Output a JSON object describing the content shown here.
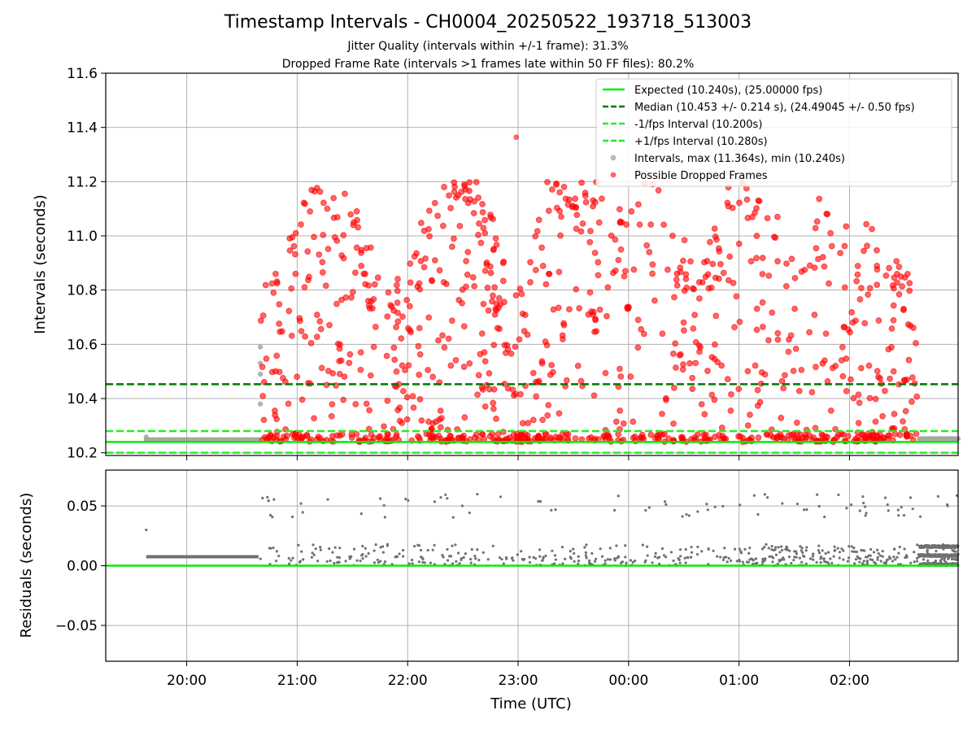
{
  "figure": {
    "title": "Timestamp Intervals - CH0004_20250522_193718_513003",
    "subtitle_1": "Jitter Quality (intervals within +/-1 frame): 31.3%",
    "subtitle_2": "Dropped Frame Rate (intervals >1 frames late within 50 FF files): 80.2%",
    "xlabel": "Time (UTC)"
  },
  "colors": {
    "expected": "#00ee00",
    "median": "#007700",
    "bounds": "#22ee22",
    "intervals": "#808080",
    "dropped": "#ff0000",
    "residuals": "#707070",
    "grid": "#b0b0b0"
  },
  "chart_data": [
    {
      "type": "scatter",
      "panel": "intervals",
      "ylabel": "Intervals (seconds)",
      "ylim": [
        10.19,
        11.6
      ],
      "yticks": [
        "10.2",
        "10.4",
        "10.6",
        "10.8",
        "11.0",
        "11.2",
        "11.4",
        "11.6"
      ],
      "ytick_values": [
        10.2,
        10.4,
        10.6,
        10.8,
        11.0,
        11.2,
        11.4,
        11.6
      ],
      "xlim": [
        "19:16",
        "02:59"
      ],
      "xticks": [
        "20:00",
        "21:00",
        "22:00",
        "23:00",
        "00:00",
        "01:00",
        "02:00"
      ],
      "grid": true,
      "legend_position": "top-right",
      "legend": [
        {
          "label": "Expected (10.240s), (25.00000 fps)",
          "kind": "solid-line",
          "color": "#00ee00"
        },
        {
          "label": "Median (10.453 +/- 0.214 s), (24.49045 +/- 0.50 fps)",
          "kind": "dashed-line",
          "color": "#007700"
        },
        {
          "label": "-1/fps Interval (10.200s)",
          "kind": "dashed-line",
          "color": "#22ee22"
        },
        {
          "label": "+1/fps Interval (10.280s)",
          "kind": "dashed-line",
          "color": "#22ee22"
        },
        {
          "label": "Intervals, max (11.364s), min (10.240s)",
          "kind": "marker",
          "color": "#a0a0a0"
        },
        {
          "label": "Possible Dropped Frames",
          "kind": "marker",
          "color": "#ff3030"
        }
      ],
      "reference_lines": {
        "expected": 10.24,
        "median": 10.453,
        "minus_one_frame": 10.2,
        "plus_one_frame": 10.28
      },
      "series": [
        {
          "name": "Intervals, max (11.364s), min (10.240s)",
          "segments": [
            {
              "start": "19:38",
              "end": "20:39",
              "value": 10.248
            },
            {
              "start": "02:38",
              "end": "02:59",
              "value": 10.252
            }
          ],
          "points": [
            {
              "time": "19:38",
              "value": 10.258
            },
            {
              "time": "20:40",
              "value": 10.59
            },
            {
              "time": "20:40",
              "value": 10.53
            },
            {
              "time": "20:40",
              "value": 10.49
            },
            {
              "time": "20:40",
              "value": 10.38
            }
          ]
        },
        {
          "name": "Possible Dropped Frames",
          "range": [
            "20:40",
            "02:37"
          ],
          "value_range": [
            10.24,
            11.364
          ],
          "max_point": {
            "time": "22:59",
            "value": 11.364
          }
        }
      ]
    },
    {
      "type": "scatter",
      "panel": "residuals",
      "ylabel": "Residuals (seconds)",
      "ylim": [
        -0.08,
        0.08
      ],
      "yticks": [
        "−0.05",
        "0.00",
        "0.05"
      ],
      "ytick_values": [
        -0.05,
        0.0,
        0.05
      ],
      "xlim": [
        "19:16",
        "02:59"
      ],
      "xticks": [
        "20:00",
        "21:00",
        "22:00",
        "23:00",
        "00:00",
        "01:00",
        "02:00"
      ],
      "grid": true,
      "zero_line": 0.0,
      "series": [
        {
          "segments": [
            {
              "start": "19:38",
              "end": "20:39",
              "value": 0.0075
            }
          ],
          "range": [
            "20:40",
            "02:59"
          ],
          "value_range": [
            0.0,
            0.071
          ]
        }
      ]
    }
  ]
}
